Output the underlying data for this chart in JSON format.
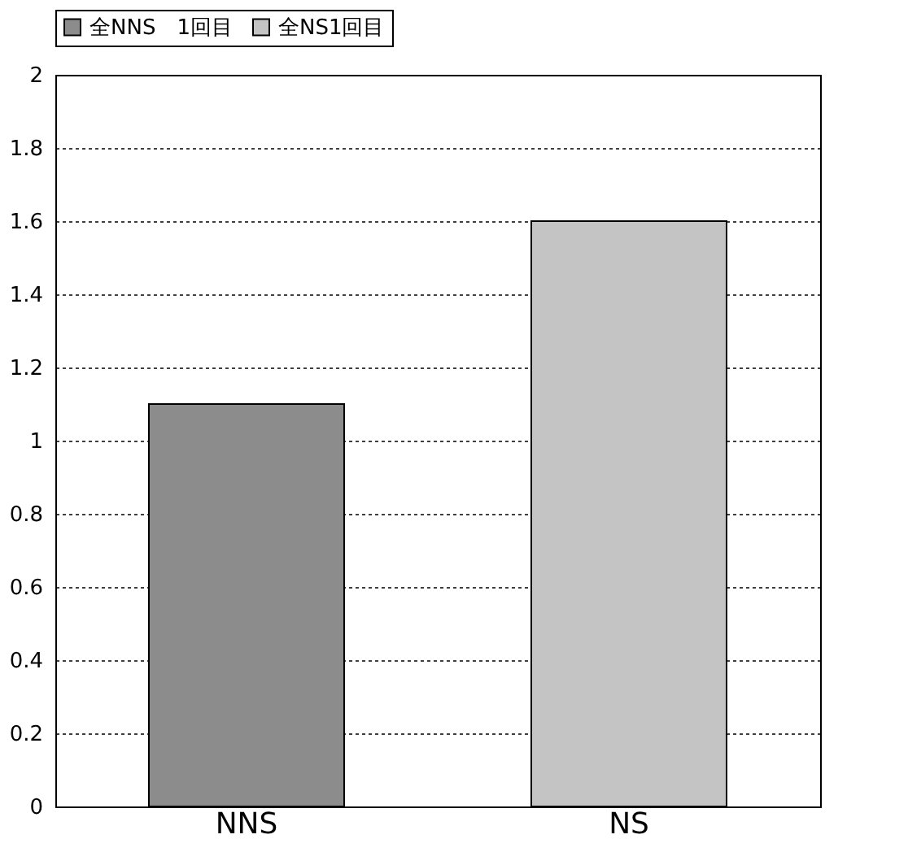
{
  "chart_data": {
    "type": "bar",
    "categories": [
      "NNS",
      "NS"
    ],
    "series": [
      {
        "name": "全NNS　1回目",
        "color": "#8c8c8c",
        "values": [
          1.1,
          null
        ]
      },
      {
        "name": "全NS1回目",
        "color": "#c4c4c4",
        "values": [
          null,
          1.6
        ]
      }
    ],
    "ylim": [
      0,
      2
    ],
    "yticks": [
      0,
      0.2,
      0.4,
      0.6,
      0.8,
      1,
      1.2,
      1.4,
      1.6,
      1.8,
      2
    ],
    "grid": "y",
    "legend": "top"
  }
}
